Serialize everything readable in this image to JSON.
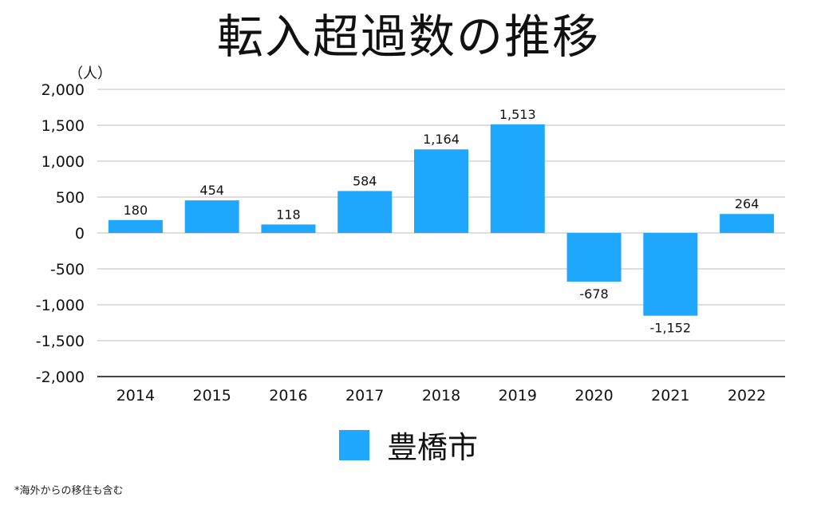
{
  "chart_data": {
    "type": "bar",
    "title": "転入超過数の推移",
    "unit": "（人）",
    "categories": [
      "2014",
      "2015",
      "2016",
      "2017",
      "2018",
      "2019",
      "2020",
      "2021",
      "2022"
    ],
    "series": [
      {
        "name": "豊橋市",
        "values": [
          180,
          454,
          118,
          584,
          1164,
          1513,
          -678,
          -1152,
          264
        ],
        "labels": [
          "180",
          "454",
          "118",
          "584",
          "1,164",
          "1,513",
          "-678",
          "-1,152",
          "264"
        ],
        "color": "#1ea7fd"
      }
    ],
    "ylim": [
      -2000,
      2000
    ],
    "yticks": [
      2000,
      1500,
      1000,
      500,
      0,
      -500,
      -1000,
      -1500,
      -2000
    ],
    "ytick_labels": [
      "2,000",
      "1,500",
      "1,000",
      "500",
      "0",
      "-500",
      "-1,000",
      "-1,500",
      "-2,000"
    ],
    "grid": true,
    "legend_position": "bottom-center"
  },
  "footnote": "*海外からの移住も含む"
}
